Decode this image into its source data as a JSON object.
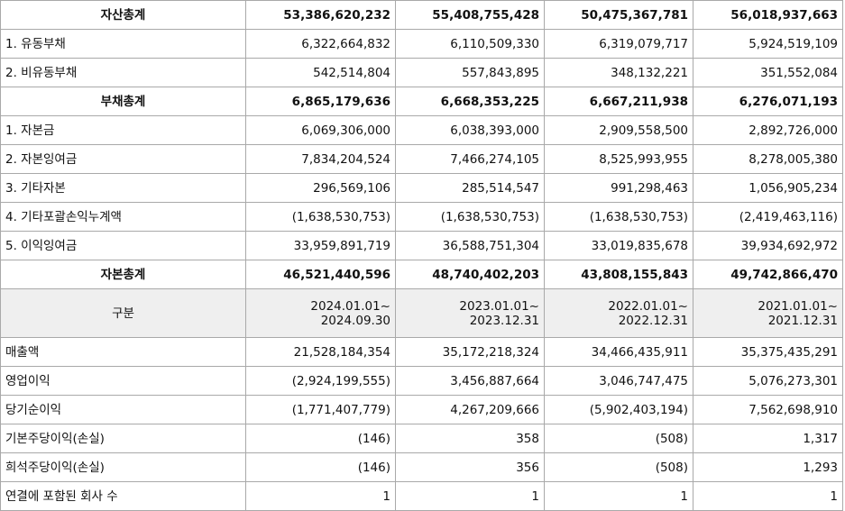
{
  "balance": {
    "rows": [
      {
        "label": "자산총계",
        "total": true,
        "values": [
          "53,386,620,232",
          "55,408,755,428",
          "50,475,367,781",
          "56,018,937,663"
        ]
      },
      {
        "label": "1. 유동부채",
        "total": false,
        "values": [
          "6,322,664,832",
          "6,110,509,330",
          "6,319,079,717",
          "5,924,519,109"
        ]
      },
      {
        "label": "2. 비유동부채",
        "total": false,
        "values": [
          "542,514,804",
          "557,843,895",
          "348,132,221",
          "351,552,084"
        ]
      },
      {
        "label": "부채총계",
        "total": true,
        "values": [
          "6,865,179,636",
          "6,668,353,225",
          "6,667,211,938",
          "6,276,071,193"
        ]
      },
      {
        "label": "1. 자본금",
        "total": false,
        "values": [
          "6,069,306,000",
          "6,038,393,000",
          "2,909,558,500",
          "2,892,726,000"
        ]
      },
      {
        "label": "2. 자본잉여금",
        "total": false,
        "values": [
          "7,834,204,524",
          "7,466,274,105",
          "8,525,993,955",
          "8,278,005,380"
        ]
      },
      {
        "label": "3. 기타자본",
        "total": false,
        "values": [
          "296,569,106",
          "285,514,547",
          "991,298,463",
          "1,056,905,234"
        ]
      },
      {
        "label": "4. 기타포괄손익누계액",
        "total": false,
        "values": [
          "(1,638,530,753)",
          "(1,638,530,753)",
          "(1,638,530,753)",
          "(2,419,463,116)"
        ]
      },
      {
        "label": "5. 이익잉여금",
        "total": false,
        "values": [
          "33,959,891,719",
          "36,588,751,304",
          "33,019,835,678",
          "39,934,692,972"
        ]
      },
      {
        "label": "자본총계",
        "total": true,
        "values": [
          "46,521,440,596",
          "48,740,402,203",
          "43,808,155,843",
          "49,742,866,470"
        ]
      }
    ]
  },
  "period_header": {
    "label": "구분",
    "periods": [
      {
        "start": "2024.01.01~",
        "end": "2024.09.30"
      },
      {
        "start": "2023.01.01~",
        "end": "2023.12.31"
      },
      {
        "start": "2022.01.01~",
        "end": "2022.12.31"
      },
      {
        "start": "2021.01.01~",
        "end": "2021.12.31"
      }
    ]
  },
  "income": {
    "rows": [
      {
        "label": "매출액",
        "values": [
          "21,528,184,354",
          "35,172,218,324",
          "34,466,435,911",
          "35,375,435,291"
        ]
      },
      {
        "label": "영업이익",
        "values": [
          "(2,924,199,555)",
          "3,456,887,664",
          "3,046,747,475",
          "5,076,273,301"
        ]
      },
      {
        "label": "당기순이익",
        "values": [
          "(1,771,407,779)",
          "4,267,209,666",
          "(5,902,403,194)",
          "7,562,698,910"
        ]
      },
      {
        "label": "기본주당이익(손실)",
        "values": [
          "(146)",
          "358",
          "(508)",
          "1,317"
        ]
      },
      {
        "label": "희석주당이익(손실)",
        "values": [
          "(146)",
          "356",
          "(508)",
          "1,293"
        ]
      },
      {
        "label": "연결에 포함된 회사 수",
        "values": [
          "1",
          "1",
          "1",
          "1"
        ]
      }
    ]
  }
}
